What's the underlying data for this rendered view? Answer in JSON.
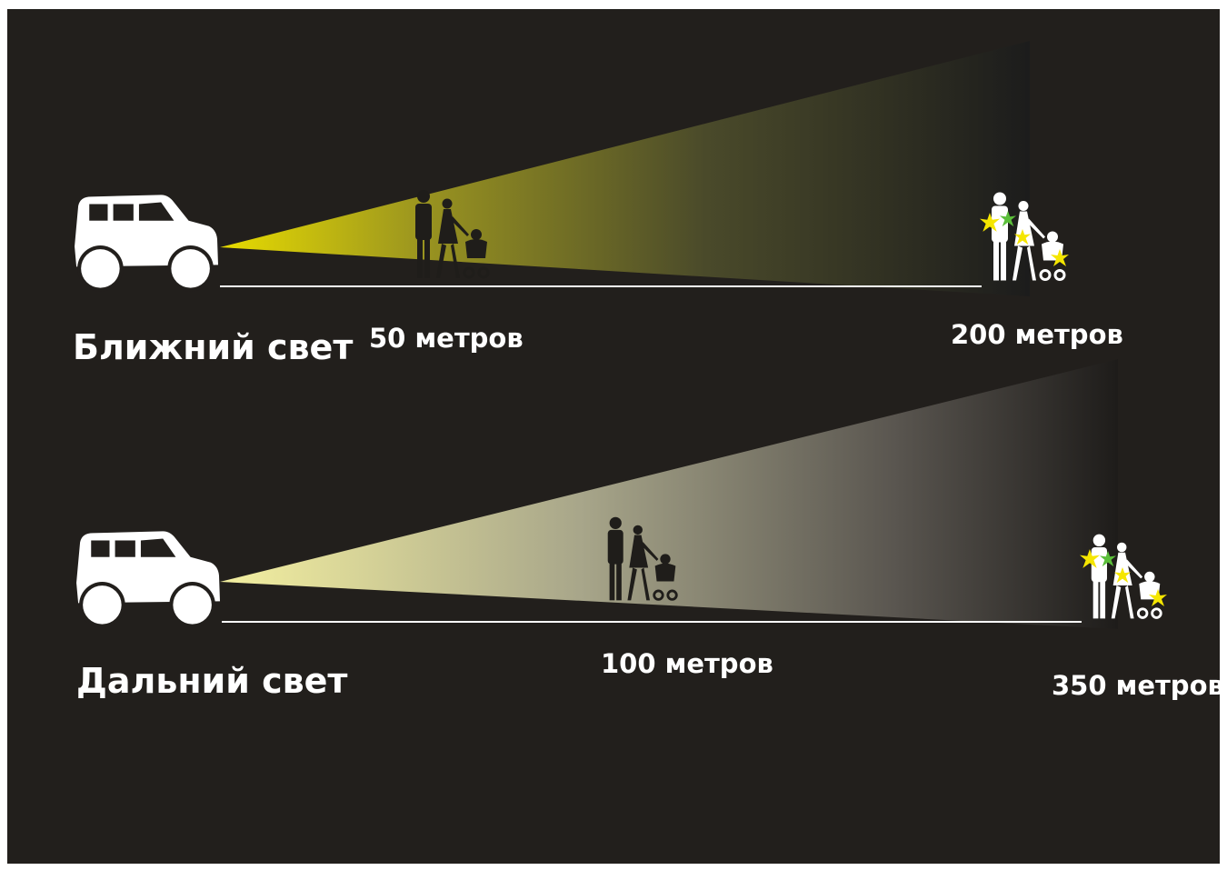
{
  "beams": [
    {
      "label": "Ближний свет",
      "near": "50 метров",
      "far": "200 метров"
    },
    {
      "label": "Дальний свет",
      "near": "100 метров",
      "far": "350 метров"
    }
  ]
}
